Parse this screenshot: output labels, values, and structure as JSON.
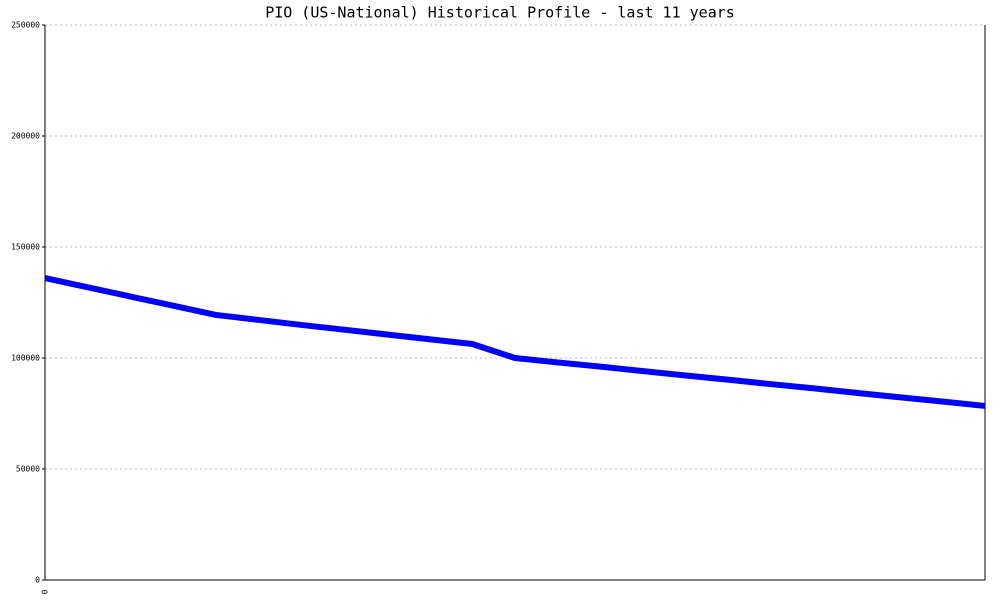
{
  "chart_data": {
    "type": "line",
    "title": "PIO (US-National) Historical Profile - last 11 years",
    "categories": [
      "0",
      null,
      null,
      null,
      null,
      null,
      null,
      null,
      null,
      null,
      null,
      null,
      null,
      null,
      null,
      null,
      null,
      null,
      null,
      null,
      null,
      null,
      null
    ],
    "series": [
      {
        "name": null,
        "color": "#0000ff",
        "values": [
          136000,
          131850,
          127700,
          123550,
          119400,
          117150,
          114900,
          112750,
          110600,
          108450,
          106300,
          100000,
          98000,
          96100,
          94100,
          92100,
          90200,
          88200,
          86300,
          84300,
          82300,
          80400,
          78400
        ]
      }
    ],
    "ylim": [
      0,
      250000
    ],
    "yticks": [
      0,
      50000,
      100000,
      150000,
      200000,
      250000
    ],
    "grid": true
  }
}
